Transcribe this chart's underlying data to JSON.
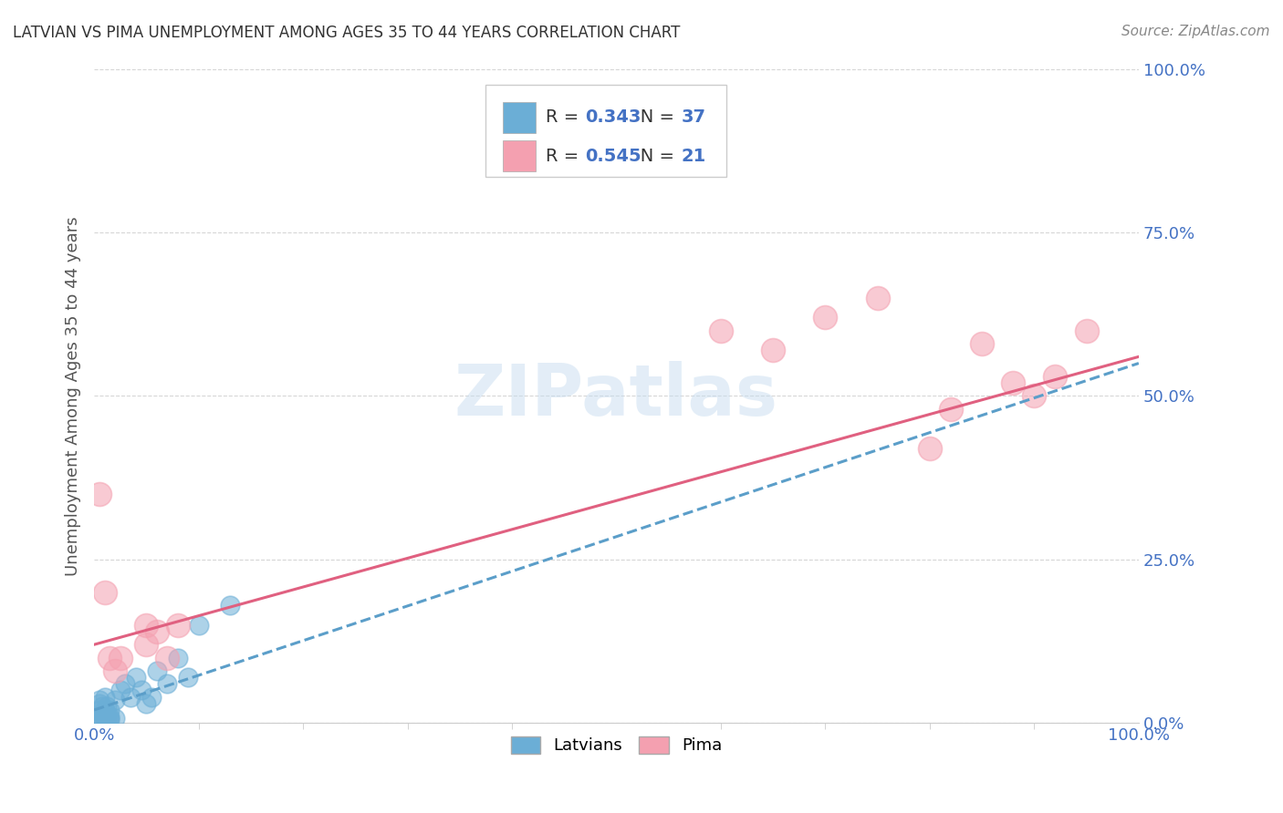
{
  "title": "LATVIAN VS PIMA UNEMPLOYMENT AMONG AGES 35 TO 44 YEARS CORRELATION CHART",
  "source": "Source: ZipAtlas.com",
  "ylabel": "Unemployment Among Ages 35 to 44 years",
  "xlim": [
    0,
    1
  ],
  "ylim": [
    0,
    1
  ],
  "latvian_color": "#6baed6",
  "pima_color": "#f4a0b0",
  "latvian_line_color": "#5b9ec9",
  "pima_line_color": "#e06080",
  "latvian_R": 0.343,
  "latvian_N": 37,
  "pima_R": 0.545,
  "pima_N": 21,
  "legend_label_latvian": "Latvians",
  "legend_label_pima": "Pima",
  "latvian_scatter_x": [
    0.005,
    0.008,
    0.01,
    0.012,
    0.015,
    0.005,
    0.008,
    0.01,
    0.015,
    0.02,
    0.005,
    0.008,
    0.01,
    0.012,
    0.015,
    0.005,
    0.008,
    0.01,
    0.012,
    0.005,
    0.008,
    0.01,
    0.015,
    0.02,
    0.025,
    0.03,
    0.035,
    0.04,
    0.045,
    0.05,
    0.055,
    0.06,
    0.07,
    0.08,
    0.09,
    0.1,
    0.13
  ],
  "latvian_scatter_y": [
    0.005,
    0.008,
    0.01,
    0.008,
    0.01,
    0.012,
    0.015,
    0.018,
    0.005,
    0.008,
    0.02,
    0.015,
    0.012,
    0.025,
    0.008,
    0.03,
    0.005,
    0.02,
    0.01,
    0.035,
    0.025,
    0.04,
    0.02,
    0.035,
    0.05,
    0.06,
    0.04,
    0.07,
    0.05,
    0.03,
    0.04,
    0.08,
    0.06,
    0.1,
    0.07,
    0.15,
    0.18
  ],
  "pima_scatter_x": [
    0.005,
    0.01,
    0.015,
    0.02,
    0.025,
    0.05,
    0.05,
    0.06,
    0.07,
    0.08,
    0.6,
    0.65,
    0.7,
    0.75,
    0.8,
    0.85,
    0.9,
    0.95,
    0.92,
    0.88,
    0.82
  ],
  "pima_scatter_y": [
    0.35,
    0.2,
    0.1,
    0.08,
    0.1,
    0.12,
    0.15,
    0.14,
    0.1,
    0.15,
    0.6,
    0.57,
    0.62,
    0.65,
    0.42,
    0.58,
    0.5,
    0.6,
    0.53,
    0.52,
    0.48
  ],
  "bg_color": "#ffffff",
  "grid_color": "#cccccc",
  "title_color": "#333333",
  "tick_color": "#4472c4",
  "r_color": "#4472c4",
  "n_color": "#4472c4",
  "watermark_color": "#c8ddf0",
  "latvian_line_x": [
    0.0,
    1.0
  ],
  "latvian_line_y": [
    0.02,
    0.55
  ],
  "pima_line_x": [
    0.0,
    1.0
  ],
  "pima_line_y": [
    0.12,
    0.56
  ]
}
